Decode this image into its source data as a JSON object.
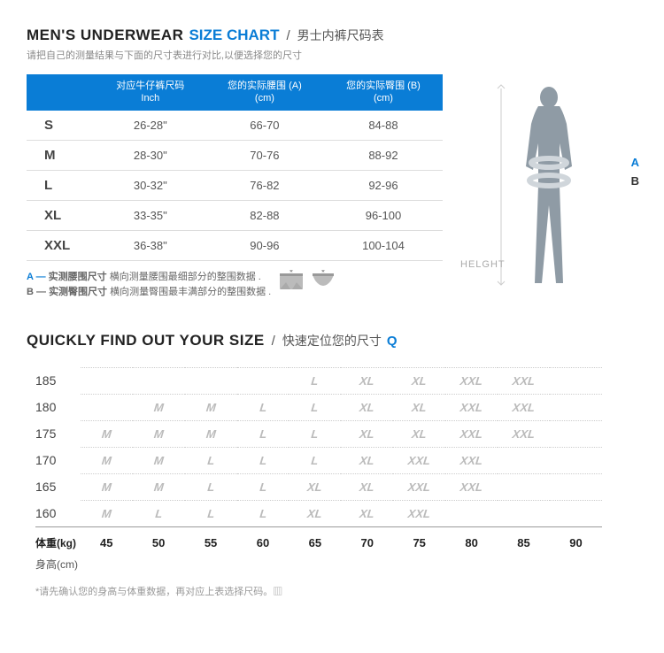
{
  "section1": {
    "title_en_part1": "MEN'S UNDERWEAR",
    "title_en_part2": "SIZE CHART",
    "title_en_color1": "#222222",
    "title_en_color2": "#0a7dd6",
    "separator": "/",
    "title_cn": "男士内裤尺码表",
    "subtitle": "请把自己的测量结果与下面的尺寸表进行对比,以便选择您的尺寸"
  },
  "size_table": {
    "header_bg": "#0a7dd6",
    "header_text_color": "#ffffff",
    "border_color": "#dddddd",
    "columns": [
      {
        "line1": "",
        "line2": ""
      },
      {
        "line1": "对应牛仔裤尺码",
        "line2": "Inch"
      },
      {
        "line1": "您的实际腰围 (A)",
        "line2": "(cm)"
      },
      {
        "line1": "您的实际臀围 (B)",
        "line2": "(cm)"
      }
    ],
    "rows": [
      {
        "size": "S",
        "inch": "26-28\"",
        "waist": "66-70",
        "hip": "84-88"
      },
      {
        "size": "M",
        "inch": "28-30\"",
        "waist": "70-76",
        "hip": "88-92"
      },
      {
        "size": "L",
        "inch": "30-32\"",
        "waist": "76-82",
        "hip": "92-96"
      },
      {
        "size": "XL",
        "inch": "33-35\"",
        "waist": "82-88",
        "hip": "96-100"
      },
      {
        "size": "XXL",
        "inch": "36-38\"",
        "waist": "90-96",
        "hip": "100-104"
      }
    ]
  },
  "notes": {
    "a_prefix": "A —",
    "a_label": "实测腰围尺寸",
    "a_desc": "横向测量腰围最细部分的整围数据 .",
    "b_prefix": "B —",
    "b_label": "实测臀围尺寸",
    "b_desc": "横向测量臀围最丰满部分的整围数据 ."
  },
  "figure": {
    "height_label": "HELGHT",
    "label_a": "A",
    "label_b": "B",
    "body_color": "#8f9ba5",
    "band_color": "#c8cfd5"
  },
  "section2": {
    "title_en": "QUICKLY FIND OUT YOUR SIZE",
    "separator": "/",
    "title_cn": "快速定位您的尺寸",
    "mag_icon": "Q"
  },
  "grid": {
    "y_label": "身高(cm)",
    "x_label": "体重(kg)",
    "y_values": [
      185,
      180,
      175,
      170,
      165,
      160
    ],
    "x_values": [
      45,
      50,
      55,
      60,
      65,
      70,
      75,
      80,
      85,
      90
    ],
    "cell_color_light": "#cccccc",
    "cell_color_dark": "#888888",
    "grid_line_color": "#cccccc",
    "data": [
      [
        "",
        "",
        "",
        "",
        "L",
        "XL",
        "XL",
        "XXL",
        "XXL",
        ""
      ],
      [
        "",
        "M",
        "M",
        "L",
        "L",
        "XL",
        "XL",
        "XXL",
        "XXL",
        ""
      ],
      [
        "M",
        "M",
        "M",
        "L",
        "L",
        "XL",
        "XL",
        "XXL",
        "XXL",
        ""
      ],
      [
        "M",
        "M",
        "L",
        "L",
        "L",
        "XL",
        "XXL",
        "XXL",
        "",
        ""
      ],
      [
        "M",
        "M",
        "L",
        "L",
        "XL",
        "XL",
        "XXL",
        "XXL",
        "",
        ""
      ],
      [
        "M",
        "L",
        "L",
        "L",
        "XL",
        "XL",
        "XXL",
        "",
        "",
        ""
      ]
    ]
  },
  "footnote": "*请先确认您的身高与体重数据，再对应上表选择尺码。▥"
}
